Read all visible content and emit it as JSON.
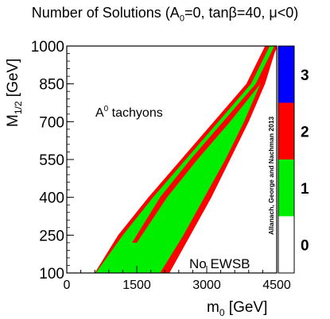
{
  "chart_data": {
    "type": "heatmap",
    "title_main": "Number of Solutions (A",
    "title_sub": "0",
    "title_rest": "=0, tanβ=40, μ<0)",
    "xlabel_main": "m",
    "xlabel_sub": "0",
    "xlabel_unit": " [GeV]",
    "ylabel_main": "M",
    "ylabel_sub": "1/2",
    "ylabel_unit": " [GeV]",
    "xlim": [
      0,
      4500
    ],
    "ylim": [
      100,
      1000
    ],
    "x_ticks": [
      0,
      1500,
      3000,
      4500
    ],
    "y_ticks": [
      100,
      250,
      400,
      550,
      700,
      850,
      1000
    ],
    "color_levels": [
      {
        "value": 0,
        "label": "0",
        "color": "#ffffff"
      },
      {
        "value": 1,
        "label": "1",
        "color": "#00ee00"
      },
      {
        "value": 2,
        "label": "2",
        "color": "#ff0000"
      },
      {
        "value": 3,
        "label": "3",
        "color": "#0000ff"
      }
    ],
    "regions": [
      {
        "name": "outer-red-band",
        "level": 2,
        "upper_edge": [
          [
            600,
            100
          ],
          [
            1100,
            250
          ],
          [
            1750,
            400
          ],
          [
            2450,
            550
          ],
          [
            3150,
            700
          ],
          [
            3850,
            850
          ],
          [
            4250,
            1000
          ]
        ],
        "lower_edge": [
          [
            2200,
            100
          ],
          [
            2650,
            250
          ],
          [
            3100,
            400
          ],
          [
            3500,
            550
          ],
          [
            3900,
            700
          ],
          [
            4250,
            850
          ],
          [
            4500,
            1000
          ]
        ]
      },
      {
        "name": "green-band",
        "level": 1,
        "upper_edge": [
          [
            620,
            100
          ],
          [
            1200,
            250
          ],
          [
            1850,
            400
          ],
          [
            2550,
            550
          ],
          [
            3250,
            700
          ],
          [
            3950,
            850
          ],
          [
            4350,
            1000
          ]
        ],
        "lower_edge": [
          [
            2000,
            100
          ],
          [
            2500,
            250
          ],
          [
            2950,
            400
          ],
          [
            3400,
            550
          ],
          [
            3800,
            700
          ],
          [
            4150,
            850
          ],
          [
            4450,
            1000
          ]
        ]
      },
      {
        "name": "inner-red-stripe",
        "level": 2,
        "upper_edge": [
          [
            1400,
            220
          ],
          [
            2000,
            400
          ],
          [
            2650,
            550
          ],
          [
            3350,
            700
          ],
          [
            4050,
            850
          ],
          [
            4450,
            1000
          ]
        ],
        "lower_edge": [
          [
            1500,
            220
          ],
          [
            2150,
            400
          ],
          [
            2800,
            550
          ],
          [
            3500,
            700
          ],
          [
            4150,
            850
          ],
          [
            4520,
            1000
          ]
        ]
      }
    ],
    "annotations": [
      {
        "text_main": "A",
        "text_sup": "0",
        "text_rest": " tachyons",
        "x": 700,
        "y": 720
      },
      {
        "text": "No EWSB",
        "x": 3700,
        "y": 140
      },
      {
        "text": "Allanach, George and Nachman 2013",
        "x": 4600,
        "y": 550
      }
    ]
  }
}
